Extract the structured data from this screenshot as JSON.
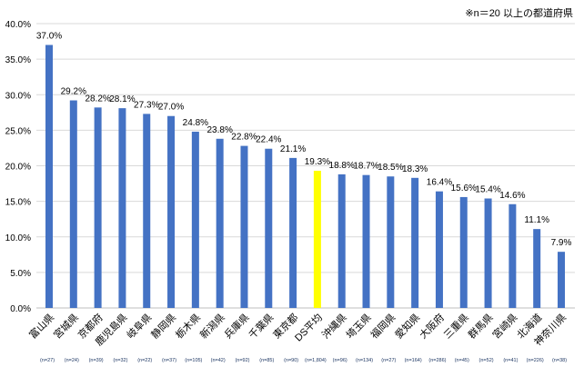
{
  "note": "※n＝20 以上の都道府県",
  "chart_data": {
    "type": "bar",
    "title": "",
    "xlabel": "",
    "ylabel": "",
    "ylim": [
      0,
      40
    ],
    "yticks": [
      "0.0%",
      "5.0%",
      "10.0%",
      "15.0%",
      "20.0%",
      "25.0%",
      "30.0%",
      "35.0%",
      "40.0%"
    ],
    "grid": true,
    "categories": [
      "富山県",
      "宮城県",
      "京都府",
      "鹿児島県",
      "岐阜県",
      "静岡県",
      "栃木県",
      "新潟県",
      "兵庫県",
      "千葉県",
      "東京都",
      "DS平均",
      "沖縄県",
      "埼玉県",
      "福岡県",
      "愛知県",
      "大阪府",
      "三重県",
      "群馬県",
      "宮崎県",
      "北海道",
      "神奈川県"
    ],
    "n_labels": [
      "(n=27)",
      "(n=24)",
      "(n=39)",
      "(n=32)",
      "(n=22)",
      "(n=37)",
      "(n=105)",
      "(n=42)",
      "(n=92)",
      "(n=85)",
      "(n=90)",
      "(n=1,804)",
      "(n=96)",
      "(n=134)",
      "(n=27)",
      "(n=164)",
      "(n=286)",
      "(n=45)",
      "(n=52)",
      "(n=41)",
      "(n=226)",
      "(n=38)"
    ],
    "values": [
      37.0,
      29.2,
      28.2,
      28.1,
      27.3,
      27.0,
      24.8,
      23.8,
      22.8,
      22.4,
      21.1,
      19.3,
      18.8,
      18.7,
      18.5,
      18.3,
      16.4,
      15.6,
      15.4,
      14.6,
      11.1,
      7.9
    ],
    "data_labels": [
      "37.0%",
      "29.2%",
      "28.2%",
      "28.1%",
      "27.3%",
      "27.0%",
      "24.8%",
      "23.8%",
      "22.8%",
      "22.4%",
      "21.1%",
      "19.3%",
      "18.8%",
      "18.7%",
      "18.5%",
      "18.3%",
      "16.4%",
      "15.6%",
      "15.4%",
      "14.6%",
      "11.1%",
      "7.9%"
    ],
    "highlight_index": 11,
    "colors": {
      "bar": "#4472C4",
      "highlight": "#FFFF00",
      "grid": "#D9D9D9"
    }
  }
}
